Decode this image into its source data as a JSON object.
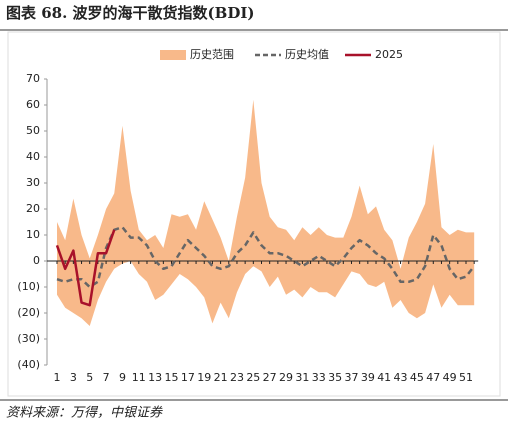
{
  "title": "图表 68. 波罗的海干散货指数(BDI)",
  "source": "资料来源：万得，中银证券",
  "chart_data": {
    "type": "line",
    "categories": [
      1,
      null,
      3,
      null,
      5,
      null,
      7,
      null,
      9,
      null,
      11,
      null,
      13,
      null,
      15,
      null,
      17,
      null,
      19,
      null,
      21,
      null,
      23,
      null,
      25,
      null,
      27,
      null,
      29,
      null,
      31,
      null,
      33,
      null,
      35,
      null,
      37,
      null,
      39,
      null,
      41,
      null,
      43,
      null,
      45,
      null,
      47,
      null,
      49,
      null,
      51,
      null
    ],
    "ylim": [
      -40,
      70
    ],
    "yticks": [
      {
        "value": -40,
        "label": "(40)"
      },
      {
        "value": -30,
        "label": "(30)"
      },
      {
        "value": -20,
        "label": "(20)"
      },
      {
        "value": -10,
        "label": "(10)"
      },
      0,
      10,
      20,
      30,
      40,
      50,
      60,
      70
    ],
    "series": [
      {
        "name": "历史范围",
        "color": "#F8B98A",
        "upper": [
          15,
          8,
          24,
          10,
          1,
          10,
          20,
          26,
          52,
          27,
          12,
          8,
          10,
          5,
          18,
          17,
          18,
          12,
          23,
          16,
          9,
          0,
          17,
          32,
          62,
          30,
          17,
          13,
          12,
          8,
          13,
          10,
          13,
          10,
          9,
          9,
          17,
          29,
          18,
          21,
          12,
          8,
          -3,
          9,
          15,
          22,
          45,
          13,
          10,
          12,
          11,
          11
        ],
        "lower": [
          -13,
          -18,
          -20,
          -22,
          -25,
          -15,
          -8,
          -3,
          -1,
          0,
          -5,
          -8,
          -15,
          -13,
          -9,
          -5,
          -7,
          -10,
          -14,
          -24,
          -16,
          -22,
          -12,
          -5,
          -2,
          -4,
          -10,
          -6,
          -13,
          -11,
          -14,
          -10,
          -12,
          -12,
          -14,
          -9,
          -4,
          -5,
          -9,
          -10,
          -8,
          -18,
          -15,
          -20,
          -22,
          -20,
          -9,
          -18,
          -13,
          -17,
          -17,
          -17
        ]
      },
      {
        "name": "历史均值",
        "color": "#666666",
        "dashed": true,
        "values": [
          -7,
          -8,
          -7,
          -7,
          -10,
          -8,
          5,
          12,
          13,
          9,
          9,
          6,
          0,
          -3,
          -2,
          3,
          8,
          5,
          2,
          -2,
          -3,
          -2,
          3,
          6,
          11,
          6,
          3,
          3,
          2,
          0,
          -2,
          0,
          2,
          0,
          -2,
          1,
          5,
          8,
          6,
          3,
          1,
          -3,
          -8,
          -8,
          -7,
          -2,
          10,
          6,
          -3,
          -7,
          -6,
          -2
        ]
      },
      {
        "name": "2025",
        "color": "#A8112A",
        "values": [
          6,
          -3,
          4,
          -16,
          -17,
          3,
          3,
          12,
          null,
          null,
          null,
          null,
          null,
          null,
          null,
          null,
          null,
          null,
          null,
          null,
          null,
          null,
          null,
          null,
          null,
          null,
          null,
          null,
          null,
          null,
          null,
          null,
          null,
          null,
          null,
          null,
          null,
          null,
          null,
          null,
          null,
          null,
          null,
          null,
          null,
          null,
          null,
          null,
          null,
          null,
          null,
          null
        ]
      }
    ]
  }
}
